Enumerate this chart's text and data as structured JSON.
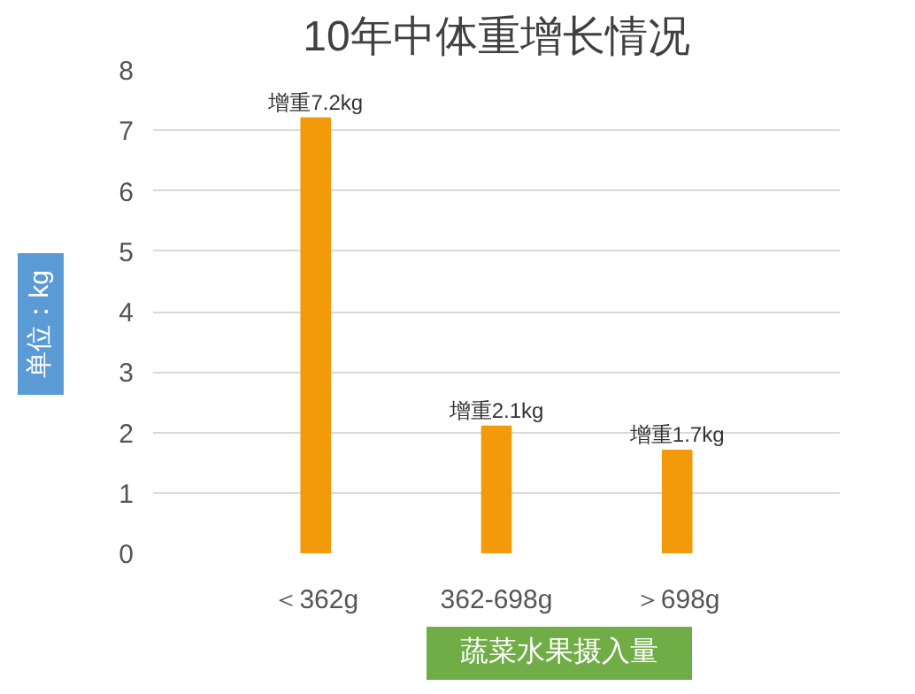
{
  "chart_data": {
    "type": "bar",
    "title": "10年中体重增长情况",
    "xlabel": "蔬菜水果摄入量",
    "ylabel": "单位：kg",
    "categories": [
      "＜362g",
      "362-698g",
      "＞698g"
    ],
    "values": [
      7.2,
      2.1,
      1.7
    ],
    "color": "#f39a0b",
    "value_labels": [
      "增重7.2kg",
      "增重2.1kg",
      "增重1.7kg"
    ],
    "ylim": [
      0,
      8
    ],
    "yticks": [
      0,
      1,
      2,
      3,
      4,
      5,
      6,
      7,
      8
    ],
    "grid": "y"
  }
}
